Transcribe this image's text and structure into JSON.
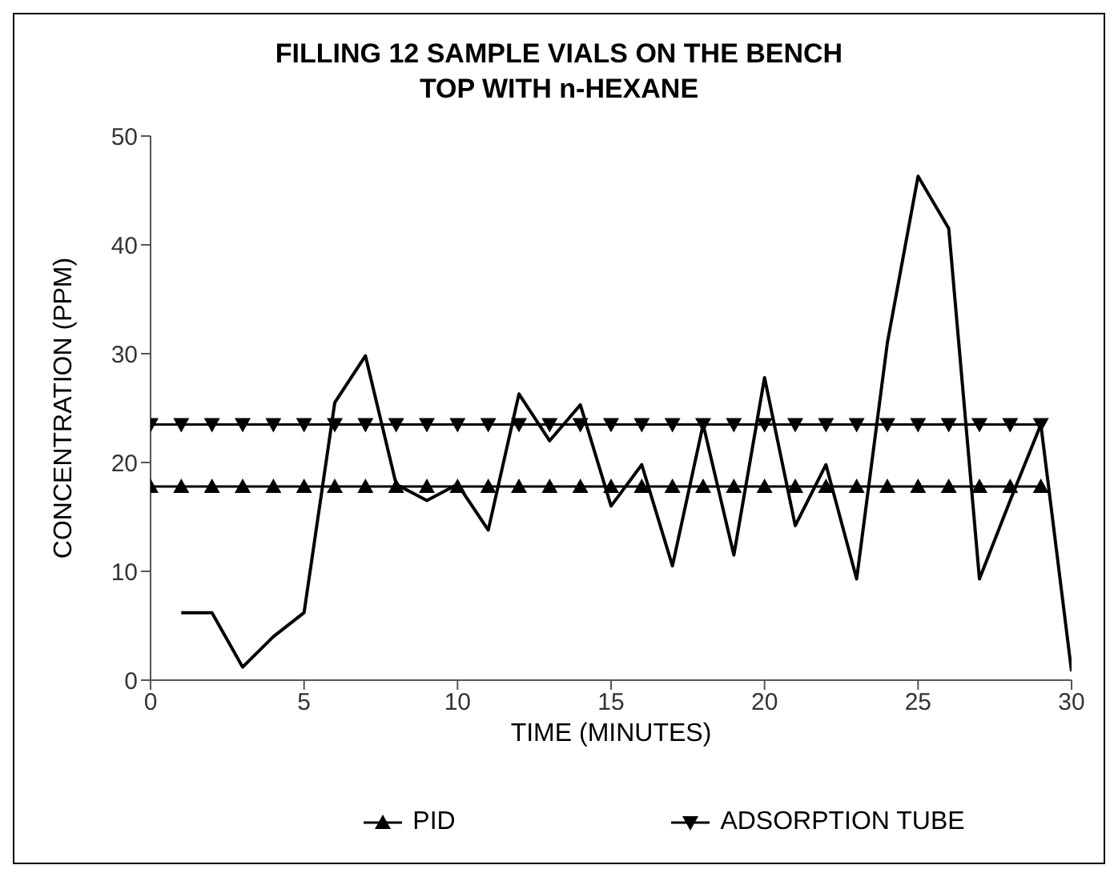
{
  "chart_data": {
    "type": "line",
    "title": "FILLING 12 SAMPLE VIALS ON THE BENCH TOP WITH n-HEXANE",
    "xlabel": "TIME (MINUTES)",
    "ylabel": "CONCENTRATION (PPM)",
    "xlim": [
      0,
      30
    ],
    "xticks": [
      0,
      5,
      10,
      15,
      20,
      25,
      30
    ],
    "ylim": [
      0,
      50
    ],
    "yticks": [
      0,
      10,
      20,
      30,
      40,
      50
    ],
    "grid": false,
    "legend": "bottom",
    "line_style": "solid",
    "series": [
      {
        "color": "#000000",
        "marker": "none",
        "x": [
          1,
          2,
          3,
          4,
          5,
          6,
          7,
          8,
          9,
          10,
          11,
          12,
          13,
          14,
          15,
          16,
          17,
          18,
          19,
          20,
          21,
          22,
          23,
          24,
          25,
          26,
          27,
          28,
          29,
          30
        ],
        "values": [
          6.2,
          6.2,
          1.2,
          4,
          6.2,
          25.5,
          29.8,
          18,
          16.5,
          18,
          13.8,
          26.3,
          22,
          25.3,
          16,
          19.8,
          10.5,
          23.5,
          11.5,
          27.8,
          14.2,
          19.8,
          9.3,
          31,
          46.3,
          41.5,
          9.3,
          16.5,
          23.5,
          0.8
        ]
      },
      {
        "name": "PID",
        "color": "#000000",
        "marker": "triangle",
        "x": [
          0,
          1,
          2,
          3,
          4,
          5,
          6,
          7,
          8,
          9,
          10,
          11,
          12,
          13,
          14,
          15,
          16,
          17,
          18,
          19,
          20,
          21,
          22,
          23,
          24,
          25,
          26,
          27,
          28,
          29
        ],
        "values": [
          17.8,
          17.8,
          17.8,
          17.8,
          17.8,
          17.8,
          17.8,
          17.8,
          17.8,
          17.8,
          17.8,
          17.8,
          17.8,
          17.8,
          17.8,
          17.8,
          17.8,
          17.8,
          17.8,
          17.8,
          17.8,
          17.8,
          17.8,
          17.8,
          17.8,
          17.8,
          17.8,
          17.8,
          17.8,
          17.8
        ]
      },
      {
        "name": "ADSORPTION TUBE",
        "color": "#000000",
        "marker": "triangle-down",
        "x": [
          0,
          1,
          2,
          3,
          4,
          5,
          6,
          7,
          8,
          9,
          10,
          11,
          12,
          13,
          14,
          15,
          16,
          17,
          18,
          19,
          20,
          21,
          22,
          23,
          24,
          25,
          26,
          27,
          28,
          29
        ],
        "values": [
          23.5,
          23.5,
          23.5,
          23.5,
          23.5,
          23.5,
          23.5,
          23.5,
          23.5,
          23.5,
          23.5,
          23.5,
          23.5,
          23.5,
          23.5,
          23.5,
          23.5,
          23.5,
          23.5,
          23.5,
          23.5,
          23.5,
          23.5,
          23.5,
          23.5,
          23.5,
          23.5,
          23.5,
          23.5,
          23.5
        ]
      }
    ]
  }
}
